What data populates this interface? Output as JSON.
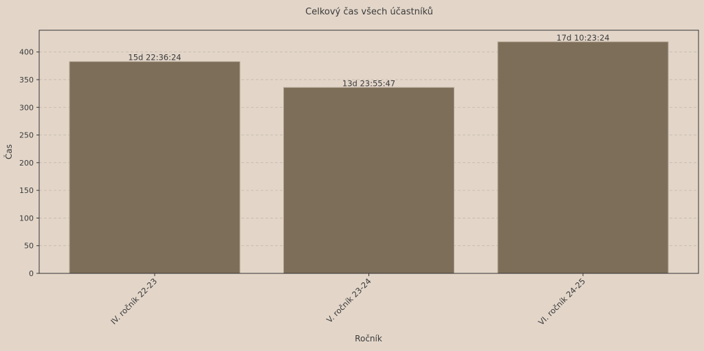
{
  "chart_data": {
    "type": "bar",
    "title": "Celkový čas všech účastníků",
    "xlabel": "Ročník",
    "ylabel": "Čas",
    "categories": [
      "IV. ročník 22-23",
      "V. ročník 23-24",
      "VI. ročník 24-25"
    ],
    "values": [
      382.61,
      335.93,
      418.39
    ],
    "data_labels": [
      "15d 22:36:24",
      "13d 23:55:47",
      "17d 10:23:24"
    ],
    "ylim": [
      0,
      439.3
    ],
    "yticks": [
      0,
      50,
      100,
      150,
      200,
      250,
      300,
      350,
      400
    ],
    "grid": "y, dashed",
    "bar_color": "#7d6e59",
    "background_color": "#e3d6c9"
  }
}
